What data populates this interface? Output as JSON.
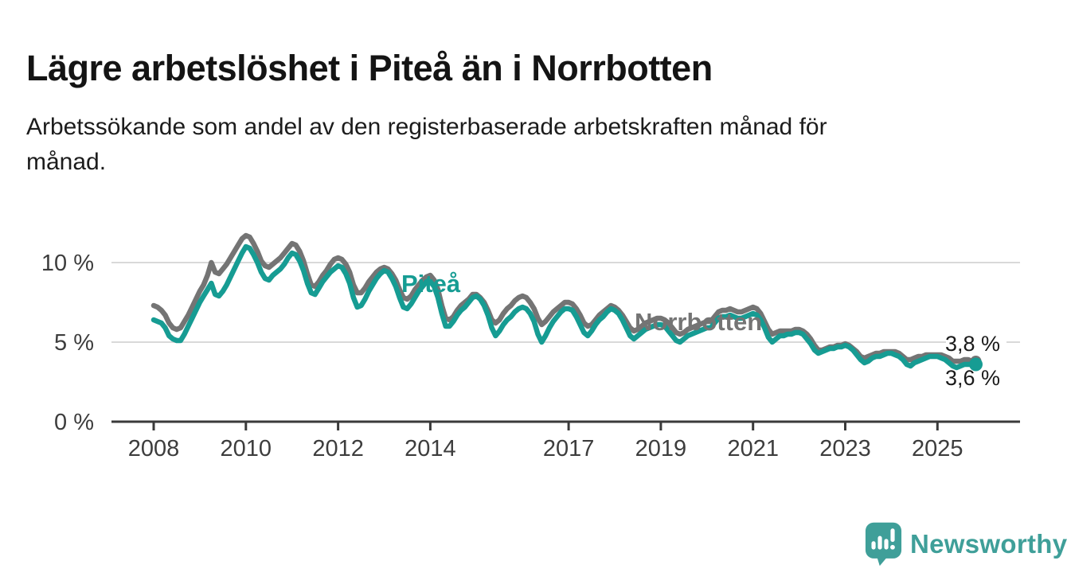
{
  "chart_data": {
    "type": "line",
    "title": "Lägre arbetslöshet i Piteå än i Norrbotten",
    "subtitle": "Arbetssökande som andel av den registerbaserade arbetskraften månad för månad.",
    "subtitle_lines": [
      "Arbetssökande som andel av den registerbaserade arbetskraften månad för",
      "månad."
    ],
    "unit": "%",
    "frequency": "monthly",
    "x_start": "2008-01",
    "x_end": "2025-11",
    "ylim": [
      0,
      12.5
    ],
    "grid_values": [
      5,
      10
    ],
    "grid_on": true,
    "legend_position": "inline-labels",
    "x_axis_ticks": [
      2008,
      2010,
      2012,
      2014,
      2017,
      2019,
      2021,
      2023,
      2025
    ],
    "y_axis_ticks": [
      {
        "value": 0,
        "label": "0 %"
      },
      {
        "value": 5,
        "label": "5 %"
      },
      {
        "value": 10,
        "label": "10 %"
      }
    ],
    "series": [
      {
        "name": "Norrbotten",
        "key": "norrbotten",
        "inline_label": "Norrbotten",
        "color": "#747474",
        "end_value_label": "3,8 %",
        "values": [
          7.3,
          7.2,
          7.0,
          6.7,
          6.2,
          5.9,
          5.8,
          5.9,
          6.3,
          6.7,
          7.2,
          7.7,
          8.2,
          8.6,
          9.2,
          10.0,
          9.4,
          9.3,
          9.6,
          9.9,
          10.3,
          10.7,
          11.1,
          11.5,
          11.7,
          11.6,
          11.2,
          10.7,
          10.1,
          9.8,
          9.7,
          9.9,
          10.1,
          10.3,
          10.6,
          10.9,
          11.2,
          11.1,
          10.7,
          10.1,
          9.3,
          8.6,
          8.5,
          8.8,
          9.2,
          9.5,
          9.9,
          10.2,
          10.3,
          10.2,
          9.9,
          9.4,
          8.6,
          8.1,
          8.1,
          8.4,
          8.8,
          9.1,
          9.4,
          9.6,
          9.7,
          9.6,
          9.3,
          8.9,
          8.3,
          7.8,
          7.7,
          7.9,
          8.3,
          8.6,
          8.9,
          9.1,
          9.2,
          8.9,
          8.3,
          7.3,
          6.5,
          6.4,
          6.6,
          7.0,
          7.3,
          7.5,
          7.7,
          8.0,
          8.0,
          7.8,
          7.5,
          7.0,
          6.4,
          6.2,
          6.4,
          6.8,
          7.1,
          7.3,
          7.6,
          7.8,
          7.9,
          7.8,
          7.5,
          7.1,
          6.5,
          6.1,
          6.3,
          6.6,
          6.9,
          7.1,
          7.3,
          7.5,
          7.5,
          7.4,
          7.1,
          6.7,
          6.2,
          6.0,
          6.1,
          6.4,
          6.7,
          6.9,
          7.1,
          7.3,
          7.2,
          7.0,
          6.7,
          6.3,
          5.9,
          5.7,
          5.8,
          6.0,
          6.2,
          6.3,
          6.4,
          6.5,
          6.5,
          6.4,
          6.2,
          5.9,
          5.6,
          5.5,
          5.6,
          5.8,
          5.9,
          6.0,
          6.1,
          6.2,
          6.3,
          6.3,
          6.6,
          6.9,
          7.0,
          7.0,
          7.1,
          7.0,
          6.9,
          6.9,
          7.0,
          7.1,
          7.2,
          7.1,
          6.8,
          6.3,
          5.8,
          5.5,
          5.6,
          5.7,
          5.7,
          5.7,
          5.7,
          5.8,
          5.8,
          5.7,
          5.5,
          5.2,
          4.8,
          4.5,
          4.5,
          4.6,
          4.7,
          4.7,
          4.8,
          4.8,
          4.9,
          4.8,
          4.6,
          4.4,
          4.1,
          4.0,
          4.1,
          4.2,
          4.3,
          4.3,
          4.4,
          4.4,
          4.4,
          4.4,
          4.3,
          4.1,
          3.9,
          3.9,
          4.0,
          4.1,
          4.1,
          4.2,
          4.2,
          4.2,
          4.2,
          4.2,
          4.1,
          4.0,
          3.8,
          3.8,
          3.8,
          3.9,
          3.9,
          3.8,
          3.8
        ]
      },
      {
        "name": "Piteå",
        "key": "pitea",
        "inline_label": "Piteå",
        "color": "#169c93",
        "end_value_label": "3,6 %",
        "values": [
          6.4,
          6.3,
          6.2,
          5.9,
          5.4,
          5.2,
          5.1,
          5.1,
          5.5,
          6.0,
          6.5,
          7.0,
          7.5,
          7.9,
          8.3,
          8.7,
          8.0,
          7.9,
          8.2,
          8.6,
          9.1,
          9.6,
          10.1,
          10.6,
          11.0,
          10.9,
          10.5,
          10.0,
          9.4,
          9.0,
          8.9,
          9.2,
          9.4,
          9.6,
          9.9,
          10.3,
          10.6,
          10.5,
          10.1,
          9.5,
          8.7,
          8.1,
          8.0,
          8.4,
          8.8,
          9.1,
          9.4,
          9.6,
          9.8,
          9.7,
          9.3,
          8.7,
          7.8,
          7.2,
          7.3,
          7.7,
          8.2,
          8.6,
          9.0,
          9.3,
          9.5,
          9.4,
          9.0,
          8.5,
          7.8,
          7.2,
          7.1,
          7.4,
          7.8,
          8.2,
          8.5,
          8.8,
          8.8,
          8.5,
          7.8,
          6.8,
          6.0,
          6.0,
          6.3,
          6.7,
          7.0,
          7.2,
          7.5,
          7.8,
          7.9,
          7.7,
          7.3,
          6.7,
          5.9,
          5.4,
          5.7,
          6.1,
          6.4,
          6.6,
          6.9,
          7.1,
          7.2,
          7.1,
          6.8,
          6.3,
          5.5,
          5.0,
          5.4,
          5.9,
          6.3,
          6.6,
          6.9,
          7.1,
          7.1,
          7.0,
          6.6,
          6.1,
          5.6,
          5.4,
          5.7,
          6.1,
          6.4,
          6.6,
          6.9,
          7.1,
          7.0,
          6.8,
          6.4,
          5.9,
          5.4,
          5.2,
          5.4,
          5.6,
          5.8,
          5.9,
          6.0,
          6.1,
          6.1,
          6.0,
          5.7,
          5.4,
          5.1,
          5.0,
          5.2,
          5.4,
          5.5,
          5.6,
          5.7,
          5.8,
          5.9,
          5.9,
          6.2,
          6.5,
          6.6,
          6.6,
          6.7,
          6.6,
          6.5,
          6.5,
          6.6,
          6.7,
          6.8,
          6.7,
          6.4,
          5.9,
          5.3,
          5.0,
          5.2,
          5.4,
          5.4,
          5.5,
          5.5,
          5.6,
          5.6,
          5.5,
          5.2,
          4.9,
          4.5,
          4.3,
          4.4,
          4.5,
          4.6,
          4.6,
          4.7,
          4.7,
          4.8,
          4.7,
          4.5,
          4.2,
          3.9,
          3.7,
          3.8,
          4.0,
          4.1,
          4.1,
          4.2,
          4.3,
          4.3,
          4.2,
          4.1,
          3.9,
          3.6,
          3.5,
          3.7,
          3.8,
          3.9,
          4.0,
          4.1,
          4.1,
          4.1,
          4.0,
          3.9,
          3.7,
          3.5,
          3.4,
          3.5,
          3.6,
          3.6,
          3.6,
          3.6
        ]
      }
    ],
    "end_labels": [
      {
        "series": "Norrbotten",
        "label": "3,8 %"
      },
      {
        "series": "Piteå",
        "label": "3,6 %"
      }
    ],
    "colors": {
      "norrbotten_line": "#747474",
      "pitea_line": "#169c93",
      "gridline": "#d9d9d9",
      "axis": "#3a3a3a",
      "tick_text": "#3d3d3d",
      "annotation_text": "#1a1a1a"
    }
  },
  "footer": {
    "brand": "Newsworthy",
    "logo_icon": "newsworthy-speech-bubble-bar-chart-icon",
    "brand_color": "#3f9f99"
  }
}
